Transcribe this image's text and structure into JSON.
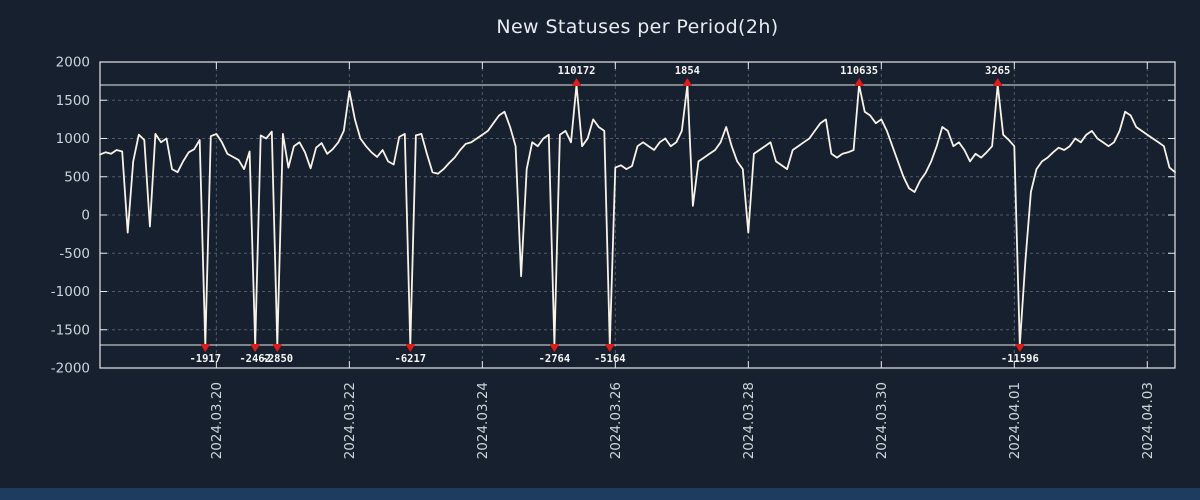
{
  "colors": {
    "background": "#16202e",
    "plot_border": "#e8e8e8",
    "grid": "#4f5a68",
    "line": "#f8f3e6",
    "marker": "#dd1c1c",
    "tick_text": "#ccd3da",
    "title_text": "#e8ecf0",
    "annotation_text": "#f5f5f5",
    "bottom_bar": "#1e3c60"
  },
  "chart_data": {
    "type": "line",
    "title": "New Statuses per Period(2h)",
    "xlabel": "",
    "ylabel": "",
    "ylim": [
      -2000,
      2000
    ],
    "y_ticks": [
      2000,
      1500,
      1000,
      500,
      0,
      -500,
      -1000,
      -1500,
      -2000
    ],
    "x_tick_labels": [
      "2024.03.20",
      "2024.03.22",
      "2024.03.24",
      "2024.03.26",
      "2024.03.28",
      "2024.03.30",
      "2024.04.01",
      "2024.04.03"
    ],
    "x_tick_indices": [
      21,
      45,
      69,
      93,
      117,
      141,
      165,
      189
    ],
    "period_hours": 2,
    "clip_value": 1700,
    "grid": true,
    "legend": "none",
    "values": [
      790,
      820,
      800,
      850,
      830,
      -230,
      700,
      1050,
      980,
      -150,
      1060,
      950,
      1000,
      600,
      560,
      700,
      820,
      860,
      980,
      -1917,
      1030,
      1060,
      950,
      800,
      760,
      720,
      600,
      830,
      -2462,
      1040,
      1000,
      1090,
      -2850,
      1060,
      620,
      900,
      950,
      820,
      610,
      880,
      940,
      800,
      860,
      950,
      1100,
      1620,
      1250,
      1000,
      900,
      820,
      760,
      850,
      700,
      660,
      1020,
      1060,
      -6217,
      1040,
      1060,
      800,
      560,
      540,
      600,
      680,
      750,
      850,
      930,
      950,
      1000,
      1050,
      1100,
      1200,
      1300,
      1350,
      1150,
      900,
      -800,
      600,
      950,
      900,
      1000,
      1050,
      -2764,
      1050,
      1100,
      950,
      110172,
      900,
      1000,
      1250,
      1150,
      1100,
      -5164,
      620,
      650,
      600,
      640,
      900,
      950,
      900,
      850,
      950,
      1000,
      900,
      950,
      1100,
      1854,
      120,
      700,
      750,
      800,
      850,
      950,
      1150,
      900,
      700,
      600,
      -230,
      800,
      850,
      900,
      950,
      700,
      650,
      600,
      850,
      900,
      950,
      1000,
      1100,
      1200,
      1250,
      800,
      750,
      800,
      820,
      850,
      110635,
      1350,
      1300,
      1200,
      1250,
      1100,
      900,
      700,
      500,
      350,
      300,
      450,
      550,
      700,
      900,
      1150,
      1100,
      900,
      950,
      850,
      700,
      800,
      750,
      820,
      900,
      3265,
      1050,
      980,
      900,
      -11596,
      -600,
      300,
      600,
      700,
      750,
      820,
      880,
      850,
      900,
      1000,
      950,
      1050,
      1100,
      1000,
      950,
      900,
      950,
      1100,
      1350,
      1300,
      1150,
      1100,
      1050,
      1000,
      950,
      900,
      620,
      560
    ],
    "annotations": [
      {
        "index": 19,
        "value": -1917,
        "label": "-1917"
      },
      {
        "index": 28,
        "value": -2462,
        "label": "-2462"
      },
      {
        "index": 32,
        "value": -2850,
        "label": "-2850"
      },
      {
        "index": 56,
        "value": -6217,
        "label": "-6217"
      },
      {
        "index": 82,
        "value": -2764,
        "label": "-2764"
      },
      {
        "index": 86,
        "value": 110172,
        "label": "110172"
      },
      {
        "index": 92,
        "value": -5164,
        "label": "-5164"
      },
      {
        "index": 106,
        "value": 1854,
        "label": "1854"
      },
      {
        "index": 137,
        "value": 110635,
        "label": "110635"
      },
      {
        "index": 162,
        "value": 3265,
        "label": "3265"
      },
      {
        "index": 166,
        "value": -11596,
        "label": "-11596"
      }
    ]
  }
}
